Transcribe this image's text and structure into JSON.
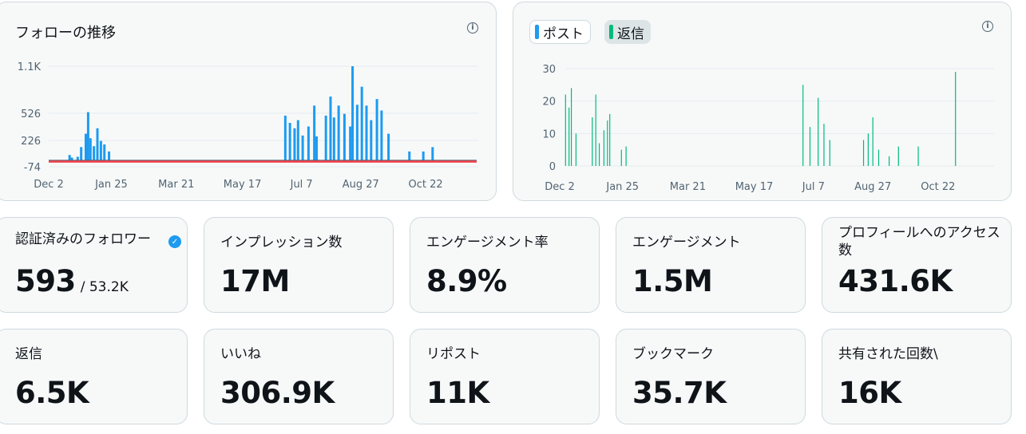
{
  "followers_chart": {
    "title": "フォローの推移",
    "y_ticks": [
      "1.1K",
      "526",
      "226",
      "-74"
    ],
    "x_ticks": [
      "Dec 2",
      "Jan 25",
      "Mar 21",
      "May 17",
      "Jul 7",
      "Aug 27",
      "Oct 22"
    ],
    "info_icon": "info-icon"
  },
  "activity_chart": {
    "legend": [
      {
        "label": "ポスト",
        "color": "#1d9bf0"
      },
      {
        "label": "返信",
        "color": "#00ba7c"
      }
    ],
    "y_ticks": [
      "30",
      "20",
      "10",
      "0"
    ],
    "x_ticks": [
      "Dec 2",
      "Jan 25",
      "Mar 21",
      "May 17",
      "Jul 7",
      "Aug 27",
      "Oct 22"
    ],
    "info_icon": "info-icon"
  },
  "chart_data": [
    {
      "type": "bar",
      "title": "フォローの推移",
      "x_range": [
        "Dec 2",
        "Dec 10 (approx)"
      ],
      "ylim": [
        -74,
        1100
      ],
      "y_ticks": [
        -74,
        226,
        526,
        1100
      ],
      "series": [
        {
          "color": "#1d9bf0",
          "values_by_date": [
            {
              "x": "Dec 20",
              "y": 60
            },
            {
              "x": "Dec 22",
              "y": 30
            },
            {
              "x": "Dec 27",
              "y": 40
            },
            {
              "x": "Dec 30",
              "y": 150
            },
            {
              "x": "Jan 3",
              "y": 300
            },
            {
              "x": "Jan 5",
              "y": 540
            },
            {
              "x": "Jan 7",
              "y": 250
            },
            {
              "x": "Jan 10",
              "y": 160
            },
            {
              "x": "Jan 13",
              "y": 360
            },
            {
              "x": "Jan 16",
              "y": 220
            },
            {
              "x": "Jan 19",
              "y": 180
            },
            {
              "x": "Jan 23",
              "y": 100
            },
            {
              "x": "Jun 23",
              "y": 500
            },
            {
              "x": "Jun 27",
              "y": 420
            },
            {
              "x": "Jul 1",
              "y": 360
            },
            {
              "x": "Jul 4",
              "y": 450
            },
            {
              "x": "Jul 8",
              "y": 280
            },
            {
              "x": "Jul 13",
              "y": 380
            },
            {
              "x": "Jul 18",
              "y": 620
            },
            {
              "x": "Jul 20",
              "y": 270
            },
            {
              "x": "Jul 28",
              "y": 500
            },
            {
              "x": "Aug 1",
              "y": 730
            },
            {
              "x": "Aug 4",
              "y": 480
            },
            {
              "x": "Aug 8",
              "y": 620
            },
            {
              "x": "Aug 13",
              "y": 520
            },
            {
              "x": "Aug 18",
              "y": 380
            },
            {
              "x": "Aug 20",
              "y": 1100
            },
            {
              "x": "Aug 24",
              "y": 630
            },
            {
              "x": "Aug 28",
              "y": 850
            },
            {
              "x": "Sep 1",
              "y": 620
            },
            {
              "x": "Sep 5",
              "y": 450
            },
            {
              "x": "Sep 10",
              "y": 700
            },
            {
              "x": "Sep 14",
              "y": 560
            },
            {
              "x": "Sep 20",
              "y": 300
            },
            {
              "x": "Oct 8",
              "y": 100
            },
            {
              "x": "Oct 20",
              "y": 100
            },
            {
              "x": "Oct 28",
              "y": 150
            }
          ]
        },
        {
          "color": "#f4212e",
          "note": "unfollows shown below zero"
        }
      ]
    },
    {
      "type": "bar",
      "ylim": [
        0,
        30
      ],
      "y_ticks": [
        0,
        10,
        20,
        30
      ],
      "series": [
        {
          "name": "返信",
          "color": "#00ba7c",
          "values_by_date": [
            {
              "x": "Dec 7",
              "y": 22
            },
            {
              "x": "Dec 10",
              "y": 18
            },
            {
              "x": "Dec 12",
              "y": 24
            },
            {
              "x": "Dec 16",
              "y": 10
            },
            {
              "x": "Dec 30",
              "y": 15
            },
            {
              "x": "Jan 2",
              "y": 22
            },
            {
              "x": "Jan 5",
              "y": 7
            },
            {
              "x": "Jan 9",
              "y": 11
            },
            {
              "x": "Jan 12",
              "y": 14
            },
            {
              "x": "Jan 14",
              "y": 16
            },
            {
              "x": "Jan 24",
              "y": 5
            },
            {
              "x": "Jan 28",
              "y": 6
            },
            {
              "x": "Jun 28",
              "y": 25
            },
            {
              "x": "Jul 4",
              "y": 12
            },
            {
              "x": "Jul 11",
              "y": 21
            },
            {
              "x": "Jul 16",
              "y": 13
            },
            {
              "x": "Jul 21",
              "y": 8
            },
            {
              "x": "Aug 19",
              "y": 8
            },
            {
              "x": "Aug 23",
              "y": 10
            },
            {
              "x": "Aug 27",
              "y": 15
            },
            {
              "x": "Sep 1",
              "y": 5
            },
            {
              "x": "Sep 10",
              "y": 3
            },
            {
              "x": "Sep 18",
              "y": 6
            },
            {
              "x": "Oct 5",
              "y": 6
            },
            {
              "x": "Nov 6",
              "y": 29
            }
          ]
        },
        {
          "name": "ポスト",
          "color": "#1d9bf0"
        }
      ]
    }
  ],
  "metrics_row1": [
    {
      "label": "認証済みのフォロワー",
      "value": "593",
      "sub": "/ 53.2K",
      "badge": "verified-badge-icon"
    },
    {
      "label": "インプレッション数",
      "value": "17M"
    },
    {
      "label": "エンゲージメント率",
      "value": "8.9%"
    },
    {
      "label": "エンゲージメント",
      "value": "1.5M"
    },
    {
      "label": "プロフィールへのアクセス数",
      "value": "431.6K"
    }
  ],
  "metrics_row2": [
    {
      "label": "返信",
      "value": "6.5K"
    },
    {
      "label": "いいね",
      "value": "306.9K"
    },
    {
      "label": "リポスト",
      "value": "11K"
    },
    {
      "label": "ブックマーク",
      "value": "35.7K"
    },
    {
      "label": "共有された回数\\",
      "value": "16K"
    }
  ]
}
